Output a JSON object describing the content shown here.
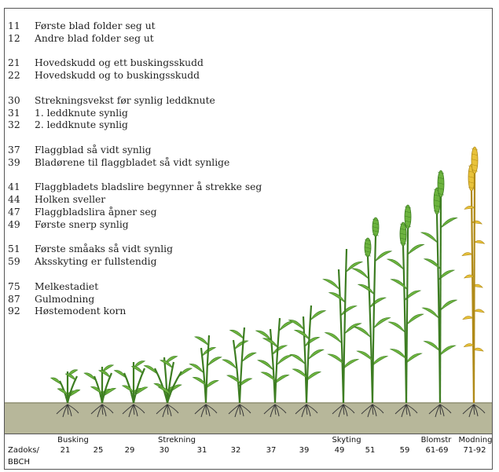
{
  "legend": [
    {
      "code": "11",
      "text": "Første blad folder seg ut"
    },
    {
      "code": "12",
      "text": "Andre blad folder seg ut"
    },
    null,
    {
      "code": "21",
      "text": "Hovedskudd og ett buskingsskudd"
    },
    {
      "code": "22",
      "text": "Hovedskudd og to buskingsskudd"
    },
    null,
    {
      "code": "30",
      "text": "Strekningsvekst før synlig leddknute"
    },
    {
      "code": "31",
      "text": "1. leddknute synlig"
    },
    {
      "code": "32",
      "text": "2. leddknute synlig"
    },
    null,
    {
      "code": "37",
      "text": "Flaggblad så vidt synlig"
    },
    {
      "code": "39",
      "text": "Bladørene til flaggbladet så vidt synlige"
    },
    null,
    {
      "code": "41",
      "text": "Flaggbladets bladslire begynner å strekke seg"
    },
    {
      "code": "44",
      "text": "Holken sveller"
    },
    {
      "code": "47",
      "text": "Flaggbladslira åpner seg"
    },
    {
      "code": "49",
      "text": "Første snerp synlig"
    },
    null,
    {
      "code": "51",
      "text": "Første småaks så vidt synlig"
    },
    {
      "code": "59",
      "text": "Aksskyting er fullstendig"
    },
    null,
    {
      "code": "75",
      "text": "Melkestadiet"
    },
    {
      "code": "87",
      "text": "Gulmodning"
    },
    {
      "code": "92",
      "text": "Høstemodent korn"
    }
  ],
  "scale": {
    "label_line1": "Zadoks/",
    "label_line2": "BBCH",
    "phases": [
      "Busking",
      "Strekning",
      "Skyting",
      "Blomstr",
      "Modning"
    ],
    "stages": [
      "21",
      "25",
      "29",
      "30",
      "31",
      "32",
      "37",
      "39",
      "49",
      "51",
      "59",
      "61-69",
      "71-92"
    ]
  },
  "colors": {
    "leaf": "#6cb33e",
    "leaf_dark": "#3d7d22",
    "mature": "#e8c23a",
    "mature_dark": "#b08a18",
    "soil": "#b7b79a",
    "soil_dark": "#8f8f72",
    "root": "#3a3a3a"
  }
}
